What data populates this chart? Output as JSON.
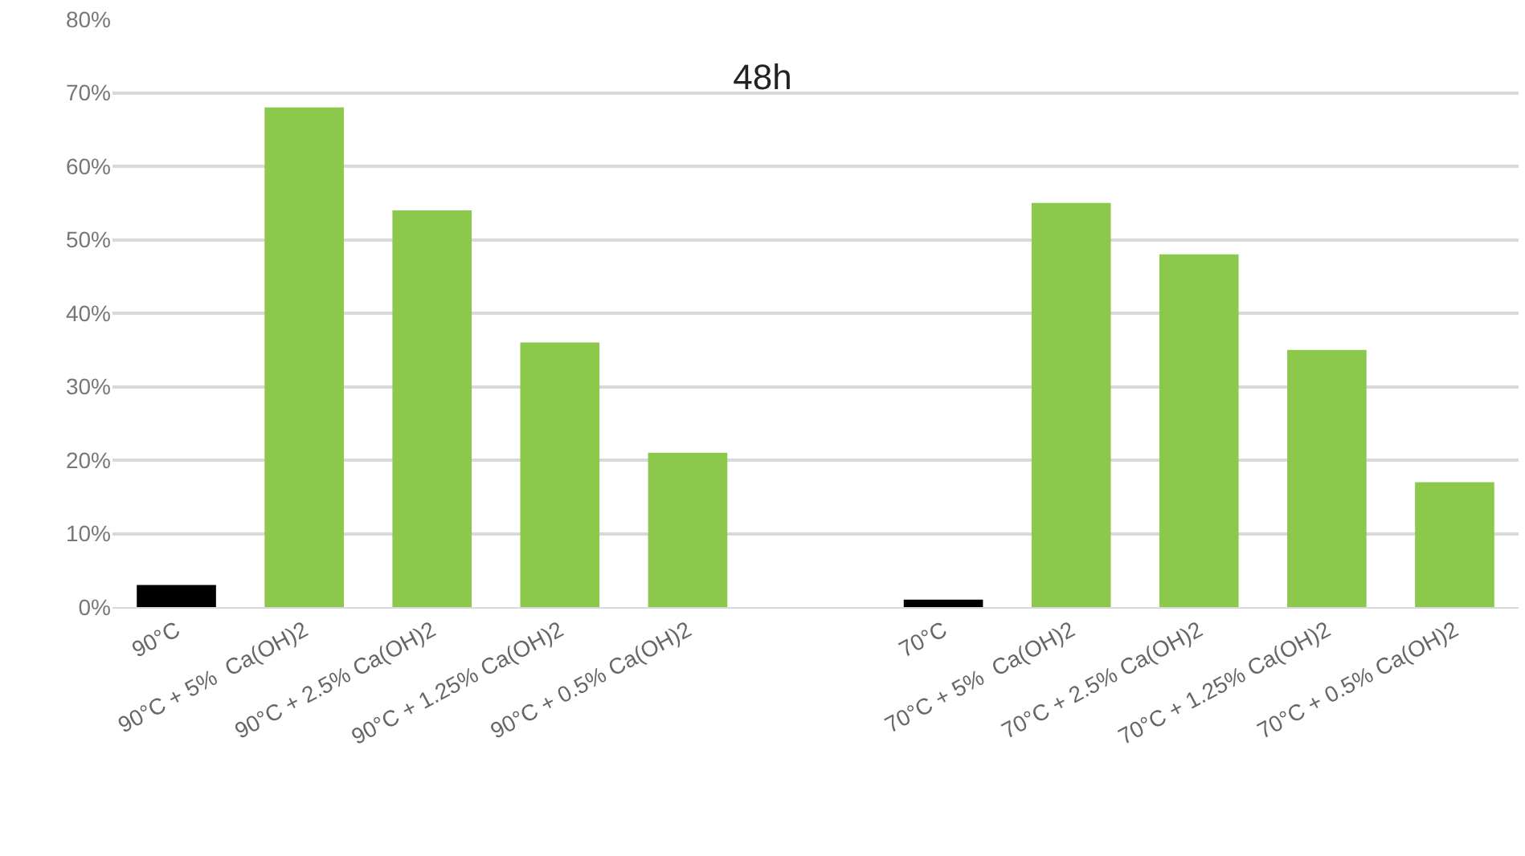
{
  "chart_data": {
    "type": "bar",
    "title": "48h",
    "categories": [
      "90°C",
      "90°C + 5%  Ca(OH)2",
      "90°C + 2.5% Ca(OH)2",
      "90°C + 1.25% Ca(OH)2",
      "90°C + 0.5% Ca(OH)2",
      null,
      "70°C",
      "70°C + 5%  Ca(OH)2",
      "70°C + 2.5% Ca(OH)2",
      "70°C + 1.25% Ca(OH)2",
      "70°C + 0.5% Ca(OH)2"
    ],
    "values": [
      3,
      68,
      54,
      36,
      21,
      null,
      1,
      55,
      48,
      35,
      17
    ],
    "colors": [
      "#000000",
      "#8cc84b",
      "#8cc84b",
      "#8cc84b",
      "#8cc84b",
      "#8cc84b",
      "#000000",
      "#8cc84b",
      "#8cc84b",
      "#8cc84b",
      "#8cc84b"
    ],
    "ylim": [
      0,
      80
    ],
    "yticks": [
      {
        "value": 0,
        "label": "0%"
      },
      {
        "value": 10,
        "label": "10%"
      },
      {
        "value": 20,
        "label": "20%"
      },
      {
        "value": 30,
        "label": "30%"
      },
      {
        "value": 40,
        "label": "40%"
      },
      {
        "value": 50,
        "label": "50%"
      },
      {
        "value": 60,
        "label": "60%"
      },
      {
        "value": 70,
        "label": "70%"
      },
      {
        "value": 80,
        "label": "80%"
      }
    ],
    "grid": "y"
  }
}
